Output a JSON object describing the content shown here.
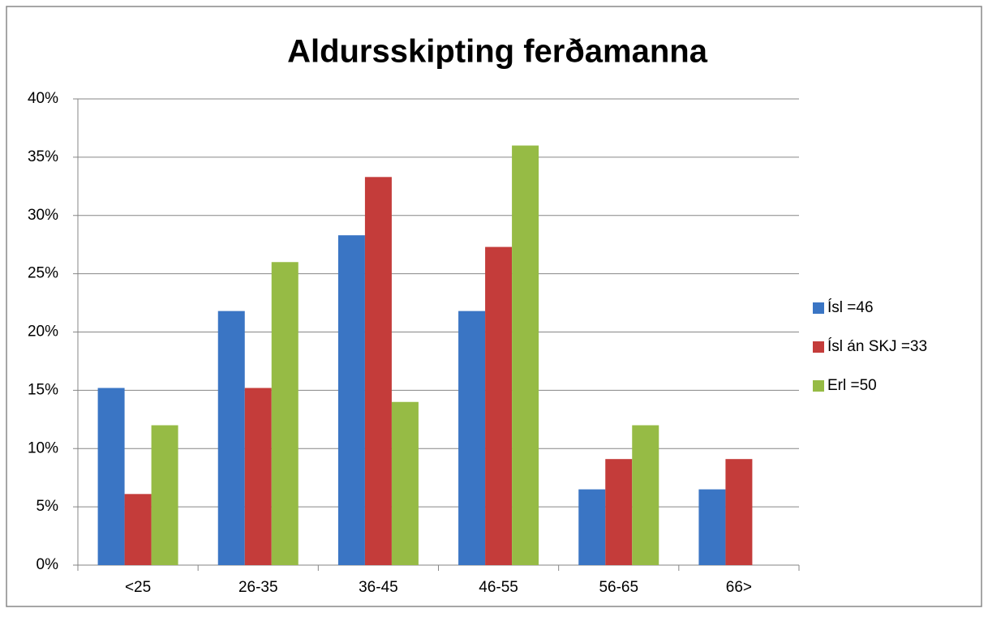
{
  "chart_data": {
    "type": "bar",
    "title": "Aldursskipting ferðamanna",
    "categories": [
      "<25",
      "26-35",
      "36-45",
      "46-55",
      "56-65",
      "66>"
    ],
    "series": [
      {
        "name": "Ísl =46",
        "color": "#3a75c4",
        "values": [
          15.2,
          21.8,
          28.3,
          21.8,
          6.5,
          6.5
        ]
      },
      {
        "name": "Ísl án SKJ =33",
        "color": "#c43c3a",
        "values": [
          6.1,
          15.2,
          33.3,
          27.3,
          9.1,
          9.1
        ]
      },
      {
        "name": "Erl =50",
        "color": "#96bb45",
        "values": [
          12,
          26,
          14,
          36,
          12,
          null
        ]
      }
    ],
    "ylim": [
      0,
      40
    ],
    "yticks": [
      {
        "value": 0,
        "label": "0%"
      },
      {
        "value": 5,
        "label": "5%"
      },
      {
        "value": 10,
        "label": "10%"
      },
      {
        "value": 15,
        "label": "15%"
      },
      {
        "value": 20,
        "label": "20%"
      },
      {
        "value": 25,
        "label": "25%"
      },
      {
        "value": 30,
        "label": "30%"
      },
      {
        "value": 35,
        "label": "35%"
      },
      {
        "value": 40,
        "label": "40%"
      }
    ],
    "grid": true,
    "legend": "right"
  }
}
